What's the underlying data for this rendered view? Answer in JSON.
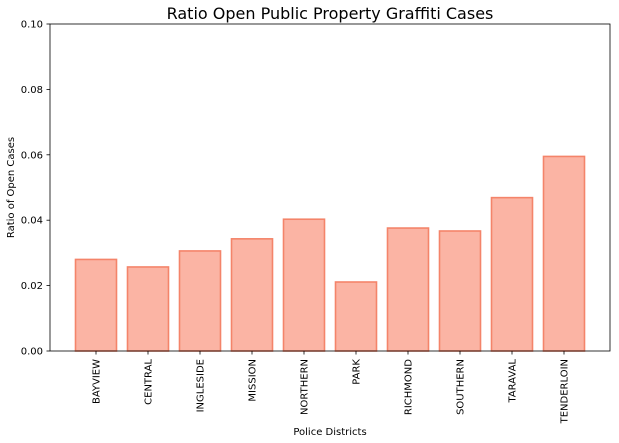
{
  "chart_data": {
    "type": "bar",
    "title": "Ratio Open Public Property Graffiti Cases",
    "xlabel": "Police Districts",
    "ylabel": "Ratio of Open Cases",
    "categories": [
      "BAYVIEW",
      "CENTRAL",
      "INGLESIDE",
      "MISSION",
      "NORTHERN",
      "PARK",
      "RICHMOND",
      "SOUTHERN",
      "TARAVAL",
      "TENDERLOIN"
    ],
    "values": [
      0.028,
      0.0257,
      0.0306,
      0.0343,
      0.0403,
      0.0211,
      0.0376,
      0.0367,
      0.0469,
      0.0595
    ],
    "ylim": [
      0,
      0.1
    ],
    "yticks": [
      "0.00",
      "0.02",
      "0.04",
      "0.06",
      "0.08",
      "0.10"
    ],
    "grid": false,
    "colors": {
      "bar_fill": "#fbb4a4",
      "bar_edge": "#f4846a",
      "axis": "#000000"
    }
  }
}
